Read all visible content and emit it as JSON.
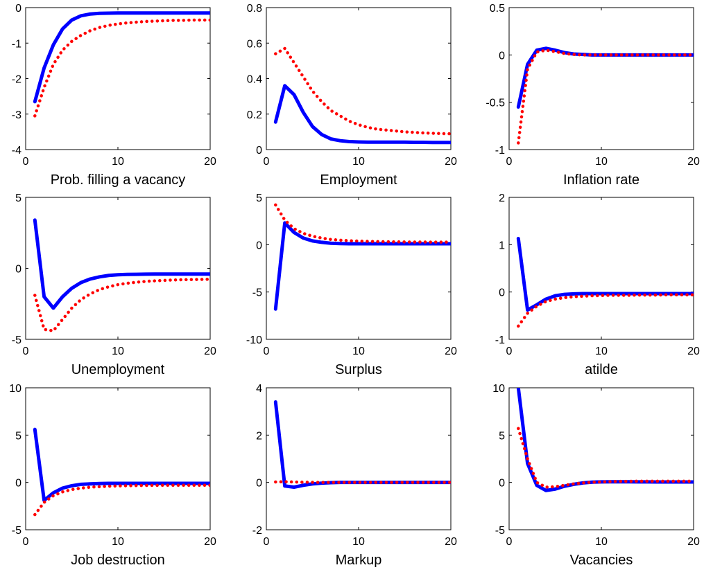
{
  "chart_data": [
    {
      "type": "line",
      "xlabel": "Prob. filling a vacancy",
      "x": [
        1,
        2,
        3,
        4,
        5,
        6,
        7,
        8,
        9,
        10,
        11,
        12,
        13,
        14,
        15,
        16,
        17,
        18,
        19,
        20
      ],
      "xlim": [
        0,
        20
      ],
      "xticks": [
        0,
        10,
        20
      ],
      "ylim": [
        -4,
        0
      ],
      "yticks": [
        -4,
        -3,
        -2,
        -1,
        0
      ],
      "ytick_labels": [
        "-4",
        "-3",
        "-2",
        "-1",
        "0"
      ],
      "series": [
        {
          "style": "solid",
          "color": "#0000ff",
          "values": [
            -2.65,
            -1.7,
            -1.05,
            -0.6,
            -0.35,
            -0.23,
            -0.18,
            -0.16,
            -0.155,
            -0.15,
            -0.15,
            -0.15,
            -0.15,
            -0.15,
            -0.15,
            -0.15,
            -0.15,
            -0.15,
            -0.15,
            -0.15
          ]
        },
        {
          "style": "dotted",
          "color": "#ff0000",
          "values": [
            -3.05,
            -2.25,
            -1.6,
            -1.2,
            -0.95,
            -0.78,
            -0.65,
            -0.56,
            -0.5,
            -0.46,
            -0.43,
            -0.41,
            -0.39,
            -0.38,
            -0.37,
            -0.36,
            -0.36,
            -0.35,
            -0.35,
            -0.35
          ]
        }
      ]
    },
    {
      "type": "line",
      "xlabel": "Employment",
      "x": [
        1,
        2,
        3,
        4,
        5,
        6,
        7,
        8,
        9,
        10,
        11,
        12,
        13,
        14,
        15,
        16,
        17,
        18,
        19,
        20
      ],
      "xlim": [
        0,
        20
      ],
      "xticks": [
        0,
        10,
        20
      ],
      "ylim": [
        0,
        0.8
      ],
      "yticks": [
        0,
        0.2,
        0.4,
        0.6,
        0.8
      ],
      "ytick_labels": [
        "0",
        "0.2",
        "0.4",
        "0.6",
        "0.8"
      ],
      "series": [
        {
          "style": "solid",
          "color": "#0000ff",
          "values": [
            0.155,
            0.36,
            0.31,
            0.21,
            0.13,
            0.085,
            0.06,
            0.05,
            0.045,
            0.043,
            0.042,
            0.042,
            0.042,
            0.042,
            0.042,
            0.041,
            0.041,
            0.04,
            0.04,
            0.04
          ]
        },
        {
          "style": "dotted",
          "color": "#ff0000",
          "values": [
            0.54,
            0.57,
            0.49,
            0.41,
            0.33,
            0.27,
            0.22,
            0.19,
            0.16,
            0.14,
            0.125,
            0.115,
            0.11,
            0.105,
            0.1,
            0.097,
            0.094,
            0.092,
            0.09,
            0.089
          ]
        }
      ]
    },
    {
      "type": "line",
      "xlabel": "Inflation rate",
      "x": [
        1,
        2,
        3,
        4,
        5,
        6,
        7,
        8,
        9,
        10,
        11,
        12,
        13,
        14,
        15,
        16,
        17,
        18,
        19,
        20
      ],
      "xlim": [
        0,
        20
      ],
      "xticks": [
        0,
        10,
        20
      ],
      "ylim": [
        -1,
        0.5
      ],
      "yticks": [
        -1,
        -0.5,
        0,
        0.5
      ],
      "ytick_labels": [
        "-1",
        "-0.5",
        "0",
        "0.5"
      ],
      "series": [
        {
          "style": "solid",
          "color": "#0000ff",
          "values": [
            -0.55,
            -0.1,
            0.05,
            0.07,
            0.05,
            0.025,
            0.01,
            0.005,
            0,
            0,
            0,
            0,
            0,
            0,
            0,
            0,
            0,
            0,
            0,
            0
          ]
        },
        {
          "style": "dotted",
          "color": "#ff0000",
          "values": [
            -0.93,
            -0.15,
            0.03,
            0.05,
            0.035,
            0.015,
            0.005,
            0,
            0,
            0,
            0,
            0,
            0,
            0,
            0,
            0,
            0,
            0,
            0,
            0
          ]
        }
      ]
    },
    {
      "type": "line",
      "xlabel": "Unemployment",
      "x": [
        1,
        2,
        3,
        4,
        5,
        6,
        7,
        8,
        9,
        10,
        11,
        12,
        13,
        14,
        15,
        16,
        17,
        18,
        19,
        20
      ],
      "xlim": [
        0,
        20
      ],
      "xticks": [
        0,
        10,
        20
      ],
      "ylim": [
        -5,
        5
      ],
      "yticks": [
        -5,
        0,
        5
      ],
      "ytick_labels": [
        "-5",
        "0",
        "5"
      ],
      "series": [
        {
          "style": "solid",
          "color": "#0000ff",
          "values": [
            3.4,
            -2.0,
            -2.8,
            -2.0,
            -1.4,
            -1.0,
            -0.75,
            -0.6,
            -0.5,
            -0.45,
            -0.43,
            -0.42,
            -0.41,
            -0.4,
            -0.4,
            -0.4,
            -0.4,
            -0.4,
            -0.4,
            -0.4
          ]
        },
        {
          "style": "dotted",
          "color": "#ff0000",
          "values": [
            -1.9,
            -4.3,
            -4.4,
            -3.6,
            -2.8,
            -2.2,
            -1.8,
            -1.5,
            -1.3,
            -1.15,
            -1.05,
            -0.98,
            -0.92,
            -0.88,
            -0.85,
            -0.82,
            -0.8,
            -0.79,
            -0.78,
            -0.77
          ]
        }
      ]
    },
    {
      "type": "line",
      "xlabel": "Surplus",
      "x": [
        1,
        2,
        3,
        4,
        5,
        6,
        7,
        8,
        9,
        10,
        11,
        12,
        13,
        14,
        15,
        16,
        17,
        18,
        19,
        20
      ],
      "xlim": [
        0,
        20
      ],
      "xticks": [
        0,
        10,
        20
      ],
      "ylim": [
        -10,
        5
      ],
      "yticks": [
        -10,
        -5,
        0,
        5
      ],
      "ytick_labels": [
        "-10",
        "-5",
        "0",
        "5"
      ],
      "series": [
        {
          "style": "solid",
          "color": "#0000ff",
          "values": [
            -6.8,
            2.3,
            1.3,
            0.7,
            0.4,
            0.25,
            0.15,
            0.12,
            0.1,
            0.1,
            0.1,
            0.1,
            0.1,
            0.1,
            0.1,
            0.1,
            0.1,
            0.1,
            0.1,
            0.1
          ]
        },
        {
          "style": "dotted",
          "color": "#ff0000",
          "values": [
            4.2,
            2.6,
            1.7,
            1.2,
            0.9,
            0.7,
            0.55,
            0.48,
            0.42,
            0.38,
            0.35,
            0.33,
            0.31,
            0.3,
            0.29,
            0.28,
            0.28,
            0.27,
            0.27,
            0.27
          ]
        }
      ]
    },
    {
      "type": "line",
      "xlabel": "atilde",
      "x": [
        1,
        2,
        3,
        4,
        5,
        6,
        7,
        8,
        9,
        10,
        11,
        12,
        13,
        14,
        15,
        16,
        17,
        18,
        19,
        20
      ],
      "xlim": [
        0,
        20
      ],
      "xticks": [
        0,
        10,
        20
      ],
      "ylim": [
        -1,
        2
      ],
      "yticks": [
        -1,
        0,
        1,
        2
      ],
      "ytick_labels": [
        "-1",
        "0",
        "1",
        "2"
      ],
      "series": [
        {
          "style": "solid",
          "color": "#0000ff",
          "values": [
            1.13,
            -0.38,
            -0.27,
            -0.15,
            -0.08,
            -0.05,
            -0.04,
            -0.035,
            -0.035,
            -0.035,
            -0.035,
            -0.035,
            -0.035,
            -0.035,
            -0.035,
            -0.035,
            -0.035,
            -0.035,
            -0.035,
            -0.035
          ]
        },
        {
          "style": "dotted",
          "color": "#ff0000",
          "values": [
            -0.72,
            -0.45,
            -0.3,
            -0.2,
            -0.15,
            -0.12,
            -0.1,
            -0.09,
            -0.08,
            -0.075,
            -0.07,
            -0.07,
            -0.07,
            -0.065,
            -0.065,
            -0.065,
            -0.06,
            -0.06,
            -0.06,
            -0.06
          ]
        }
      ]
    },
    {
      "type": "line",
      "xlabel": "Job destruction",
      "x": [
        1,
        2,
        3,
        4,
        5,
        6,
        7,
        8,
        9,
        10,
        11,
        12,
        13,
        14,
        15,
        16,
        17,
        18,
        19,
        20
      ],
      "xlim": [
        0,
        20
      ],
      "xticks": [
        0,
        10,
        20
      ],
      "ylim": [
        -5,
        10
      ],
      "yticks": [
        -5,
        0,
        5,
        10
      ],
      "ytick_labels": [
        "-5",
        "0",
        "5",
        "10"
      ],
      "series": [
        {
          "style": "solid",
          "color": "#0000ff",
          "values": [
            5.6,
            -1.9,
            -1.1,
            -0.6,
            -0.35,
            -0.2,
            -0.15,
            -0.12,
            -0.1,
            -0.1,
            -0.1,
            -0.1,
            -0.1,
            -0.1,
            -0.1,
            -0.1,
            -0.1,
            -0.1,
            -0.1,
            -0.1
          ]
        },
        {
          "style": "dotted",
          "color": "#ff0000",
          "values": [
            -3.4,
            -2.1,
            -1.4,
            -1.0,
            -0.75,
            -0.6,
            -0.5,
            -0.45,
            -0.4,
            -0.37,
            -0.35,
            -0.33,
            -0.32,
            -0.31,
            -0.3,
            -0.3,
            -0.3,
            -0.3,
            -0.3,
            -0.3
          ]
        }
      ]
    },
    {
      "type": "line",
      "xlabel": "Markup",
      "x": [
        1,
        2,
        3,
        4,
        5,
        6,
        7,
        8,
        9,
        10,
        11,
        12,
        13,
        14,
        15,
        16,
        17,
        18,
        19,
        20
      ],
      "xlim": [
        0,
        20
      ],
      "xticks": [
        0,
        10,
        20
      ],
      "ylim": [
        -2,
        4
      ],
      "yticks": [
        -2,
        0,
        2,
        4
      ],
      "ytick_labels": [
        "-2",
        "0",
        "2",
        "4"
      ],
      "series": [
        {
          "style": "solid",
          "color": "#0000ff",
          "values": [
            3.4,
            -0.15,
            -0.2,
            -0.12,
            -0.06,
            -0.03,
            -0.01,
            0,
            0,
            0,
            0,
            0,
            0,
            0,
            0,
            0,
            0,
            0,
            0,
            0
          ]
        },
        {
          "style": "dotted",
          "color": "#ff0000",
          "values": [
            0.02,
            0.03,
            0.02,
            0.01,
            0.005,
            0,
            0,
            0,
            0,
            0,
            0,
            0,
            0,
            0,
            0,
            0,
            0,
            0,
            0,
            0
          ]
        }
      ]
    },
    {
      "type": "line",
      "xlabel": "Vacancies",
      "x": [
        1,
        2,
        3,
        4,
        5,
        6,
        7,
        8,
        9,
        10,
        11,
        12,
        13,
        14,
        15,
        16,
        17,
        18,
        19,
        20
      ],
      "xlim": [
        0,
        20
      ],
      "xticks": [
        0,
        10,
        20
      ],
      "ylim": [
        -5,
        10
      ],
      "yticks": [
        -5,
        0,
        5,
        10
      ],
      "ytick_labels": [
        "-5",
        "0",
        "5",
        "10"
      ],
      "series": [
        {
          "style": "solid",
          "color": "#0000ff",
          "values": [
            10,
            2.0,
            -0.3,
            -0.85,
            -0.7,
            -0.4,
            -0.2,
            -0.05,
            0.03,
            0.06,
            0.07,
            0.07,
            0.07,
            0.06,
            0.06,
            0.05,
            0.05,
            0.05,
            0.05,
            0.05
          ]
        },
        {
          "style": "dotted",
          "color": "#ff0000",
          "values": [
            5.7,
            2.5,
            0,
            -0.5,
            -0.45,
            -0.3,
            -0.15,
            -0.05,
            0.02,
            0.06,
            0.09,
            0.11,
            0.12,
            0.13,
            0.13,
            0.13,
            0.13,
            0.13,
            0.13,
            0.13
          ]
        }
      ]
    }
  ]
}
